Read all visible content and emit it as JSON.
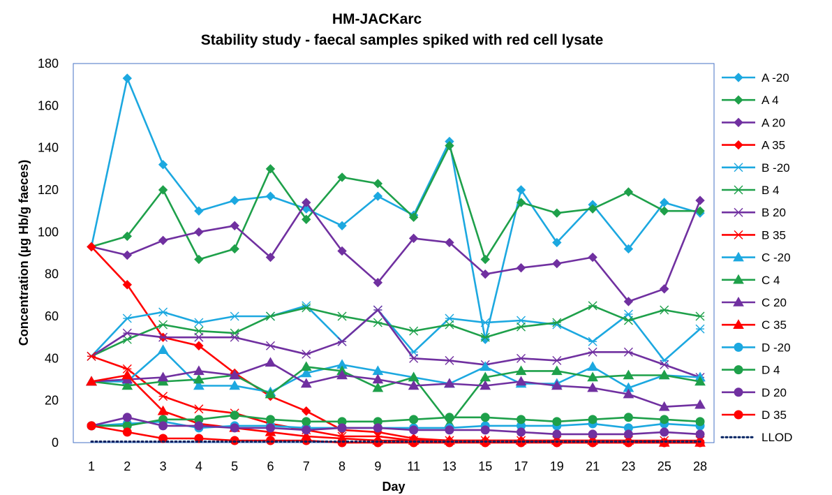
{
  "chart_data": {
    "type": "line",
    "title": "HM-JACKarc",
    "subtitle": "Stability study - faecal samples spiked with red cell lysate",
    "xlabel": "Day",
    "ylabel": "Concentration (µg Hb/g faeces)",
    "ylim": [
      0,
      180
    ],
    "yticks": [
      0,
      20,
      40,
      60,
      80,
      100,
      120,
      140,
      160,
      180
    ],
    "categories": [
      "1",
      "2",
      "3",
      "4",
      "5",
      "6",
      "7",
      "8",
      "9",
      "11",
      "13",
      "15",
      "17",
      "19",
      "21",
      "23",
      "25",
      "28"
    ],
    "grid": false,
    "legend_position": "right",
    "series": [
      {
        "name": "A -20",
        "color": "#1CA8E0",
        "marker": "diamond",
        "values": [
          93,
          173,
          132,
          110,
          115,
          117,
          111,
          103,
          117,
          108,
          143,
          49,
          120,
          95,
          113,
          92,
          114,
          109
        ]
      },
      {
        "name": "A 4",
        "color": "#1EA04A",
        "marker": "diamond",
        "values": [
          93,
          98,
          120,
          87,
          92,
          130,
          106,
          126,
          123,
          107,
          141,
          87,
          114,
          109,
          111,
          119,
          110,
          110
        ]
      },
      {
        "name": "A 20",
        "color": "#7030A0",
        "marker": "diamond",
        "values": [
          93,
          89,
          96,
          100,
          103,
          88,
          114,
          91,
          76,
          97,
          95,
          80,
          83,
          85,
          88,
          67,
          73,
          115
        ]
      },
      {
        "name": "A 35",
        "color": "#FF0000",
        "marker": "diamond",
        "values": [
          93,
          75,
          50,
          46,
          33,
          22,
          15,
          6,
          5,
          2,
          1,
          1,
          1,
          0,
          0,
          0,
          0,
          0
        ]
      },
      {
        "name": "B -20",
        "color": "#1CA8E0",
        "marker": "asterisk",
        "values": [
          41,
          59,
          62,
          57,
          60,
          60,
          65,
          48,
          63,
          43,
          59,
          57,
          58,
          56,
          48,
          61,
          39,
          54
        ]
      },
      {
        "name": "B 4",
        "color": "#1EA04A",
        "marker": "asterisk",
        "values": [
          41,
          49,
          56,
          53,
          52,
          60,
          64,
          60,
          57,
          53,
          56,
          50,
          55,
          57,
          65,
          58,
          63,
          60
        ]
      },
      {
        "name": "B 20",
        "color": "#7030A0",
        "marker": "asterisk",
        "values": [
          41,
          52,
          50,
          50,
          50,
          46,
          42,
          48,
          63,
          40,
          39,
          37,
          40,
          39,
          43,
          43,
          37,
          31
        ]
      },
      {
        "name": "B 35",
        "color": "#FF0000",
        "marker": "asterisk",
        "values": [
          41,
          35,
          22,
          16,
          14,
          9,
          6,
          3,
          3,
          1,
          1,
          1,
          1,
          1,
          1,
          1,
          1,
          1
        ]
      },
      {
        "name": "C -20",
        "color": "#1CA8E0",
        "marker": "triangle",
        "values": [
          29,
          29,
          44,
          27,
          27,
          24,
          33,
          37,
          34,
          31,
          28,
          36,
          28,
          28,
          36,
          26,
          32,
          31
        ]
      },
      {
        "name": "C 4",
        "color": "#1EA04A",
        "marker": "triangle",
        "values": [
          29,
          27,
          29,
          30,
          32,
          23,
          36,
          34,
          26,
          31,
          9,
          31,
          34,
          34,
          31,
          32,
          32,
          29
        ]
      },
      {
        "name": "C 20",
        "color": "#7030A0",
        "marker": "triangle",
        "values": [
          29,
          30,
          31,
          34,
          32,
          38,
          28,
          32,
          30,
          27,
          28,
          27,
          29,
          27,
          26,
          23,
          17,
          18
        ]
      },
      {
        "name": "C 35",
        "color": "#FF0000",
        "marker": "triangle",
        "values": [
          29,
          32,
          15,
          9,
          7,
          5,
          3,
          2,
          1,
          1,
          1,
          1,
          1,
          1,
          1,
          1,
          0,
          0
        ]
      },
      {
        "name": "D -20",
        "color": "#1CA8E0",
        "marker": "circle",
        "values": [
          8,
          9,
          10,
          7,
          8,
          8,
          7,
          7,
          7,
          7,
          7,
          8,
          8,
          8,
          9,
          7,
          9,
          8
        ]
      },
      {
        "name": "D 4",
        "color": "#1EA04A",
        "marker": "circle",
        "values": [
          8,
          8,
          11,
          11,
          13,
          11,
          10,
          10,
          10,
          11,
          12,
          12,
          11,
          10,
          11,
          12,
          11,
          10
        ]
      },
      {
        "name": "D 20",
        "color": "#7030A0",
        "marker": "circle",
        "values": [
          8,
          12,
          8,
          8,
          7,
          7,
          6,
          7,
          7,
          6,
          6,
          6,
          5,
          4,
          4,
          4,
          5,
          4
        ]
      },
      {
        "name": "D 35",
        "color": "#FF0000",
        "marker": "circle",
        "values": [
          8,
          5,
          2,
          2,
          1,
          1,
          1,
          0,
          0,
          0,
          0,
          0,
          0,
          0,
          0,
          0,
          0,
          0
        ]
      },
      {
        "name": "LLOD",
        "color": "#002060",
        "marker": "none",
        "dashed": true,
        "values": [
          0.5,
          0.5,
          0.5,
          0.5,
          0.5,
          0.5,
          0.5,
          0.5,
          0.5,
          0.5,
          0.5,
          0.5,
          0.5,
          0.5,
          0.5,
          0.5,
          0.5,
          0.5
        ]
      }
    ]
  }
}
